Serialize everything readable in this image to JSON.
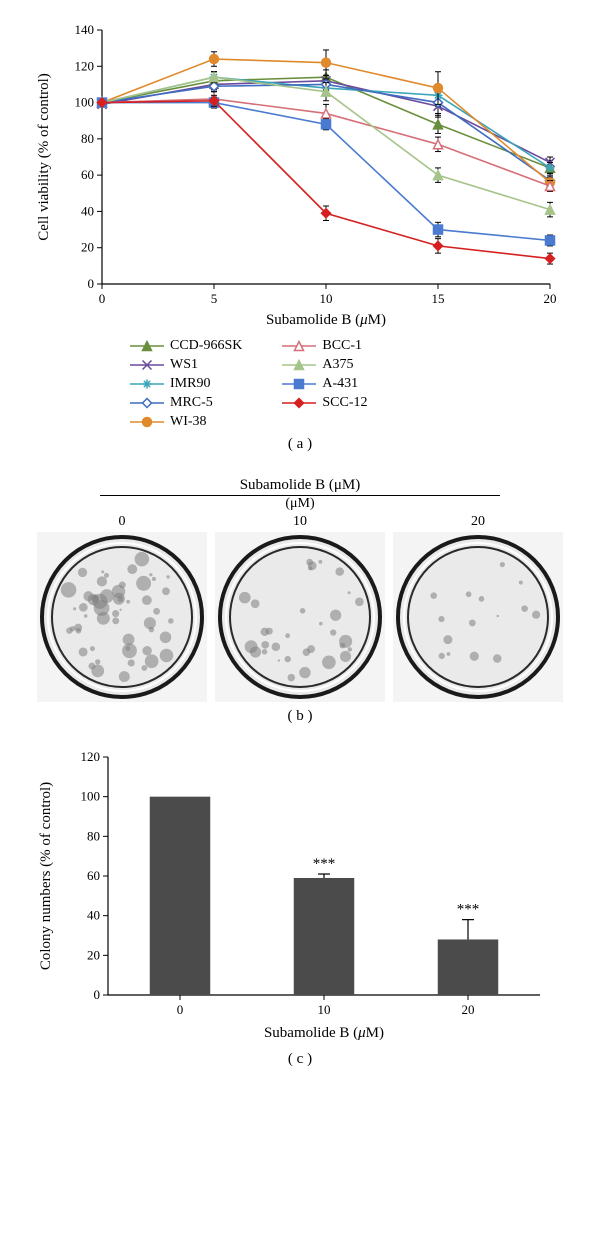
{
  "panel_a": {
    "type": "line",
    "title": null,
    "xlabel": "Subamolide B (μM)",
    "ylabel": "Cell viability (% of control)",
    "x_values": [
      0,
      5,
      10,
      15,
      20
    ],
    "xlim": [
      0,
      20
    ],
    "ylim": [
      0,
      140
    ],
    "ytick_step": 20,
    "label_fontsize": 15,
    "tick_fontsize": 13,
    "background_color": "#ffffff",
    "axis_color": "#000000",
    "tick_length": 5,
    "series": [
      {
        "name": "CCD-966SK",
        "color": "#6a8f3c",
        "marker": "triangle-up",
        "filled": true,
        "y": [
          100,
          112,
          114,
          88,
          64
        ],
        "err": [
          0,
          5,
          4,
          5,
          4
        ]
      },
      {
        "name": "WS1",
        "color": "#6a4a9c",
        "marker": "x",
        "filled": true,
        "y": [
          99,
          110,
          112,
          98,
          67
        ],
        "err": [
          0,
          3,
          3,
          6,
          3
        ]
      },
      {
        "name": "IMR90",
        "color": "#3aa6b9",
        "marker": "asterisk",
        "filled": true,
        "y": [
          100,
          114,
          108,
          104,
          64
        ],
        "err": [
          0,
          3,
          3,
          6,
          3
        ]
      },
      {
        "name": "MRC-5",
        "color": "#3e6cc0",
        "marker": "diamond",
        "filled": false,
        "y": [
          100,
          109,
          110,
          100,
          57
        ],
        "err": [
          0,
          3,
          3,
          6,
          4
        ]
      },
      {
        "name": "WI-38",
        "color": "#e08a2c",
        "marker": "circle",
        "filled": true,
        "y": [
          100,
          124,
          122,
          108,
          56
        ],
        "err": [
          0,
          4,
          7,
          9,
          3
        ]
      },
      {
        "name": "BCC-1",
        "color": "#d66f78",
        "marker": "triangle-up",
        "filled": false,
        "y": [
          100,
          102,
          94,
          77,
          54
        ],
        "err": [
          0,
          4,
          5,
          4,
          3
        ]
      },
      {
        "name": "A375",
        "color": "#a6c48a",
        "marker": "triangle-up",
        "filled": true,
        "y": [
          100,
          114,
          106,
          60,
          41
        ],
        "err": [
          0,
          3,
          5,
          4,
          4
        ]
      },
      {
        "name": "A-431",
        "color": "#4a7bd0",
        "marker": "square",
        "filled": true,
        "y": [
          100,
          100,
          88,
          30,
          24
        ],
        "err": [
          0,
          3,
          3,
          4,
          3
        ]
      },
      {
        "name": "SCC-12",
        "color": "#d61f1f",
        "marker": "diamond",
        "filled": true,
        "y": [
          100,
          101,
          39,
          21,
          14
        ],
        "err": [
          0,
          3,
          4,
          4,
          3
        ]
      }
    ]
  },
  "panel_b": {
    "title": "Subamolide B (μM)",
    "subtitle": "(μM)",
    "columns": [
      {
        "dose": "0",
        "colony_count": 55,
        "colony_max_r": 7
      },
      {
        "dose": "10",
        "colony_count": 32,
        "colony_max_r": 6
      },
      {
        "dose": "20",
        "colony_count": 15,
        "colony_max_r": 4
      }
    ],
    "dish_bg_color": "#f4f4f4",
    "dish_ring_colors": [
      "#1a1a1a",
      "#ffffff",
      "#2a2a2a"
    ],
    "dish_inner_color": "#eaeaea",
    "colony_color": "#7d7d7d"
  },
  "panel_c": {
    "type": "bar",
    "xlabel": "Subamolide B (μM)",
    "ylabel": "Colony numbers (% of control)",
    "categories": [
      "0",
      "10",
      "20"
    ],
    "values": [
      100,
      59,
      28
    ],
    "errors": [
      0,
      2,
      10
    ],
    "sig_labels": [
      "",
      "***",
      "***"
    ],
    "ylim": [
      0,
      120
    ],
    "ytick_step": 20,
    "bar_color": "#4b4b4b",
    "bar_width": 0.42,
    "label_fontsize": 15,
    "tick_fontsize": 13,
    "axis_color": "#000000",
    "background_color": "#ffffff"
  },
  "labels": {
    "a": "( a )",
    "b": "( b )",
    "c": "( c )"
  }
}
